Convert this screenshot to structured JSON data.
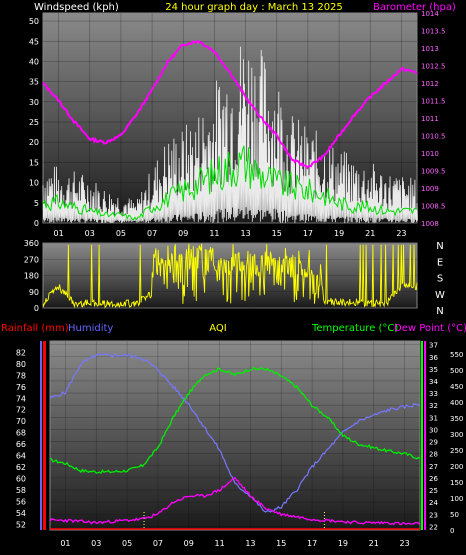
{
  "header": {
    "wind_title": "Windspeed (kph)",
    "center_title": "24 hour graph day : March 13 2025",
    "baro_title": "Barometer (hpa)"
  },
  "compass": [
    "N",
    "W",
    "S",
    "E",
    "N"
  ],
  "bottom_header": {
    "rain_title": "Rainfall (mm)",
    "hum_title": "Humidity",
    "aqi_title": "AQI",
    "temp_title": "Temperature (°C)",
    "dew_title": "Dew Point (°C)"
  },
  "colors": {
    "wind_title": "#ffffff",
    "center_title": "#ffff00",
    "baro_title": "#ff00ff",
    "rain_title": "#ff0000",
    "hum_title": "#6666ff",
    "aqi_title": "#ffff00",
    "temp_title": "#00ff00",
    "dew_title": "#ff00ff"
  },
  "chart_data": [
    {
      "type": "line",
      "name": "wind-barometer",
      "x_tick_labels": [
        "01",
        "03",
        "05",
        "07",
        "09",
        "11",
        "13",
        "15",
        "17",
        "19",
        "21",
        "23"
      ],
      "left_axis": {
        "label": "Windspeed (kph)",
        "ticks": [
          0,
          5,
          10,
          15,
          20,
          25,
          30,
          35,
          40,
          45,
          50
        ],
        "range": [
          0,
          52
        ]
      },
      "right_axis": {
        "label": "Barometer (hpa)",
        "ticks": [
          1008,
          1008.5,
          1009,
          1009.5,
          1010,
          1010.5,
          1011,
          1011.5,
          1012,
          1012.5,
          1013,
          1013.5,
          1014
        ],
        "range": [
          1008,
          1014
        ]
      },
      "barometer_hourly": [
        1012.0,
        1011.5,
        1010.9,
        1010.4,
        1010.3,
        1010.5,
        1011.1,
        1011.8,
        1012.6,
        1013.1,
        1013.2,
        1012.9,
        1012.3,
        1011.6,
        1011.0,
        1010.5,
        1009.8,
        1009.6,
        1009.9,
        1010.5,
        1011.1,
        1011.6,
        1012.0,
        1012.4,
        1012.3
      ],
      "wind_gust_hourly": [
        14,
        13,
        12,
        11,
        8,
        7,
        5,
        13,
        20,
        22,
        26,
        32,
        40,
        45,
        40,
        35,
        25,
        22,
        20,
        17,
        15,
        14,
        12,
        11,
        10
      ],
      "wind_avg_hourly": [
        5,
        5,
        4,
        3,
        2,
        2,
        1,
        4,
        6,
        8,
        10,
        12,
        14,
        15,
        12,
        10,
        9,
        8,
        7,
        5,
        4,
        4,
        3,
        3,
        3
      ]
    },
    {
      "type": "line",
      "name": "wind-direction",
      "x_tick_labels": [
        "01",
        "03",
        "05",
        "07",
        "09",
        "11",
        "13",
        "15",
        "17",
        "19",
        "21",
        "23"
      ],
      "left_axis": {
        "ticks": [
          0,
          90,
          180,
          270,
          360
        ],
        "range": [
          0,
          360
        ]
      },
      "direction_hourly": [
        20,
        330,
        15,
        25,
        10,
        20,
        15,
        200,
        250,
        280,
        300,
        270,
        240,
        260,
        230,
        250,
        220,
        200,
        60,
        40,
        30,
        20,
        15,
        350,
        340
      ]
    },
    {
      "type": "line",
      "name": "rain-humidity-temperature",
      "x_tick_labels": [
        "01",
        "03",
        "05",
        "07",
        "09",
        "11",
        "13",
        "15",
        "17",
        "19",
        "21",
        "23"
      ],
      "humidity_axis": {
        "label": "Humidity",
        "ticks": [
          52,
          54,
          56,
          58,
          60,
          62,
          64,
          66,
          68,
          70,
          72,
          74,
          76,
          78,
          80,
          82
        ],
        "range": [
          51,
          84
        ]
      },
      "temperature_axis": {
        "label": "Temperature (°C)",
        "ticks": [
          22,
          23,
          24,
          25,
          26,
          27,
          28,
          29,
          30,
          31,
          32,
          33,
          34,
          35,
          36,
          37
        ],
        "range": [
          21.7,
          37.3
        ]
      },
      "aqi_axis": {
        "label": "AQI",
        "ticks": [
          0,
          50,
          100,
          150,
          200,
          250,
          300,
          350,
          400,
          450,
          500,
          550
        ],
        "range": [
          0,
          590
        ]
      },
      "humidity_hourly": [
        74,
        75,
        80,
        81.5,
        81.5,
        81.5,
        81,
        79,
        76,
        73,
        69,
        65,
        59,
        57,
        54,
        55,
        58,
        62,
        65,
        68,
        70,
        71,
        72,
        72.5,
        73
      ],
      "temperature_hourly": [
        27.5,
        27.2,
        26.6,
        26.5,
        26.5,
        26.6,
        27.0,
        28.5,
        31.0,
        33.0,
        34.5,
        35.0,
        34.5,
        35.0,
        35.0,
        34.4,
        33.5,
        32.0,
        31.0,
        29.5,
        28.8,
        28.5,
        28.2,
        28.0,
        27.6
      ],
      "dewpoint_hourly": [
        22.5,
        22.5,
        22.4,
        22.3,
        22.4,
        22.5,
        22.6,
        23.0,
        24.0,
        24.5,
        24.5,
        25.0,
        26.0,
        24.5,
        23.5,
        23.0,
        22.8,
        22.6,
        22.5,
        22.4,
        22.3,
        22.3,
        22.3,
        22.2,
        22.2
      ],
      "rain_markers_hours": [
        6.1,
        17.8
      ]
    }
  ]
}
